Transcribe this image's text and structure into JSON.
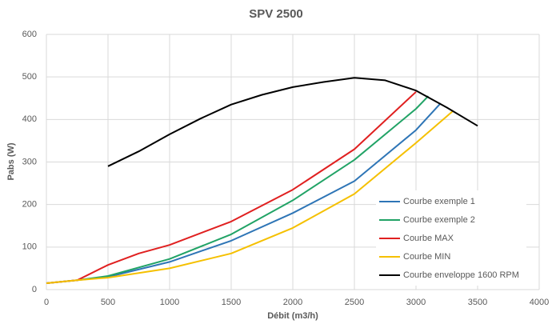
{
  "chart_data": {
    "type": "line",
    "title": "SPV 2500",
    "xlabel": "Débit (m3/h)",
    "ylabel": "Pabs (W)",
    "xlim": [
      0,
      4000
    ],
    "xticks": [
      0,
      500,
      1000,
      1500,
      2000,
      2500,
      3000,
      3500,
      4000
    ],
    "ylim": [
      0,
      600
    ],
    "yticks": [
      0,
      100,
      200,
      300,
      400,
      500,
      600
    ],
    "grid": true,
    "legend": "lower right",
    "series": [
      {
        "name": "Courbe exemple 1",
        "color": "#2e75b6",
        "x": [
          0,
          250,
          500,
          1000,
          1500,
          2000,
          2500,
          3000,
          3200
        ],
        "values": [
          15,
          22,
          30,
          65,
          115,
          180,
          255,
          375,
          438
        ]
      },
      {
        "name": "Courbe exemple 2",
        "color": "#21a366",
        "x": [
          0,
          250,
          500,
          1000,
          1500,
          2000,
          2500,
          3000,
          3100
        ],
        "values": [
          15,
          22,
          32,
          72,
          130,
          210,
          305,
          425,
          455
        ]
      },
      {
        "name": "Courbe MAX",
        "color": "#e02020",
        "x": [
          0,
          250,
          500,
          750,
          1000,
          1500,
          2000,
          2500,
          3000
        ],
        "values": [
          15,
          22,
          58,
          85,
          105,
          160,
          235,
          330,
          465
        ]
      },
      {
        "name": "Courbe MIN",
        "color": "#f5c000",
        "x": [
          0,
          250,
          500,
          1000,
          1500,
          2000,
          2500,
          3000,
          3300
        ],
        "values": [
          15,
          22,
          28,
          50,
          85,
          145,
          225,
          345,
          420
        ]
      },
      {
        "name": "Courbe enveloppe 1600 RPM",
        "color": "#000000",
        "x": [
          500,
          750,
          1000,
          1250,
          1500,
          1750,
          2000,
          2250,
          2500,
          2750,
          3000,
          3250,
          3500
        ],
        "values": [
          290,
          325,
          365,
          402,
          435,
          458,
          476,
          488,
          498,
          492,
          468,
          428,
          385
        ]
      }
    ]
  }
}
